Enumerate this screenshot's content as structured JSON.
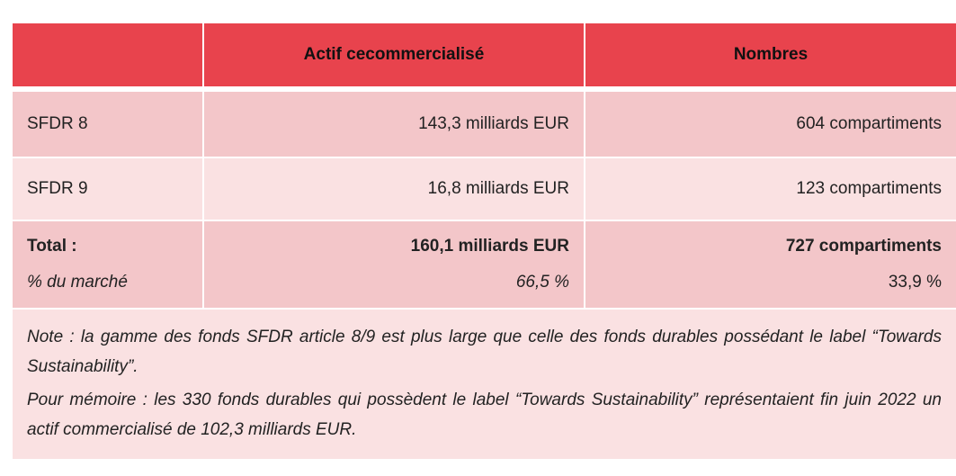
{
  "table": {
    "headers": [
      "",
      "Actif cecommercialisé",
      "Nombres"
    ],
    "rows": [
      {
        "label": "SFDR 8",
        "actif": "143,3 milliards EUR",
        "nombres": "604 compartiments"
      },
      {
        "label": "SFDR 9",
        "actif": "16,8 milliards EUR",
        "nombres": "123 compartiments"
      }
    ],
    "total": {
      "label": "Total :",
      "actif": "160,1 milliards EUR",
      "nombres": "727 compartiments",
      "market_label": "% du marché",
      "market_actif": "66,5 %",
      "market_nombres": "33,9 %"
    },
    "note": {
      "line1": "Note : la gamme des fonds SFDR article 8/9 est plus large que celle des fonds durables possédant le label “Towards Sustainability”.",
      "line2": "Pour mémoire : les 330 fonds durables qui possèdent le label “Towards Sustainability” représentaient fin juin 2022 un actif commercialisé de 102,3 milliards EUR."
    }
  },
  "colors": {
    "header_bg": "#e8434d",
    "row_dark": "#f3c6c9",
    "row_light": "#fae1e2"
  }
}
